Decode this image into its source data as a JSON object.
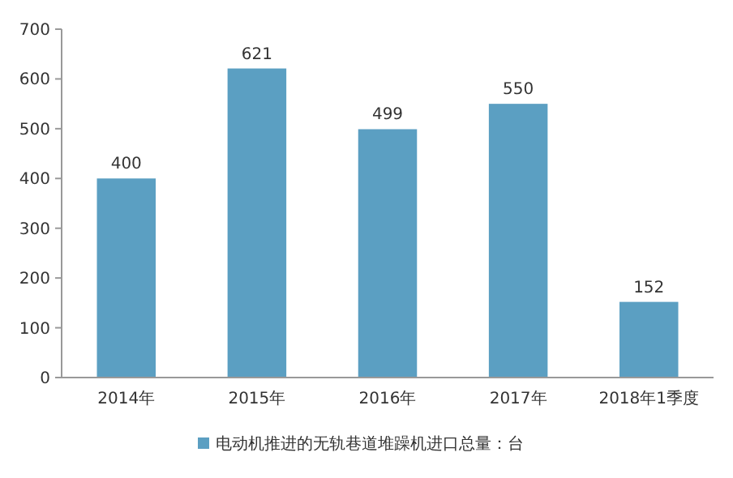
{
  "chart_data": {
    "type": "bar",
    "categories": [
      "2014年",
      "2015年",
      "2016年",
      "2017年",
      "2018年1季度"
    ],
    "series": [
      {
        "name": "电动机推进的无轨巷道堆躁机进口总量：台",
        "color": "#5b9fc2",
        "values": [
          400,
          621,
          499,
          550,
          152
        ]
      }
    ],
    "ylim": [
      0,
      700
    ],
    "yticks": [
      0,
      100,
      200,
      300,
      400,
      500,
      600,
      700
    ],
    "data_labels": true,
    "legend": "bottom",
    "grid": false
  }
}
